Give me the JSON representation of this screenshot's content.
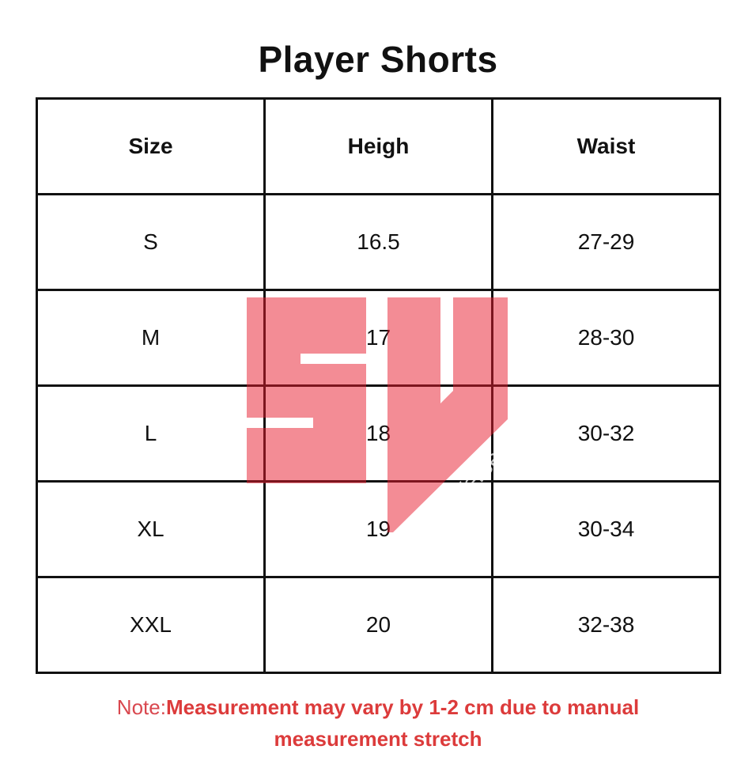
{
  "title": "Player Shorts",
  "table": {
    "headers": [
      "Size",
      "Heigh",
      "Waist"
    ],
    "rows": [
      [
        "S",
        "16.5",
        "27-29"
      ],
      [
        "M",
        "17",
        "28-30"
      ],
      [
        "L",
        "18",
        "30-32"
      ],
      [
        "XL",
        "19",
        "30-34"
      ],
      [
        "XXL",
        "20",
        "32-38"
      ]
    ]
  },
  "watermark": {
    "logo": "SV",
    "text": "SportsVerse",
    "color": "#e8192c"
  },
  "note": {
    "label": "Note:",
    "text": "Measurement may vary by 1-2 cm due to manual measurement stretch",
    "color": "#dc3b3b"
  }
}
